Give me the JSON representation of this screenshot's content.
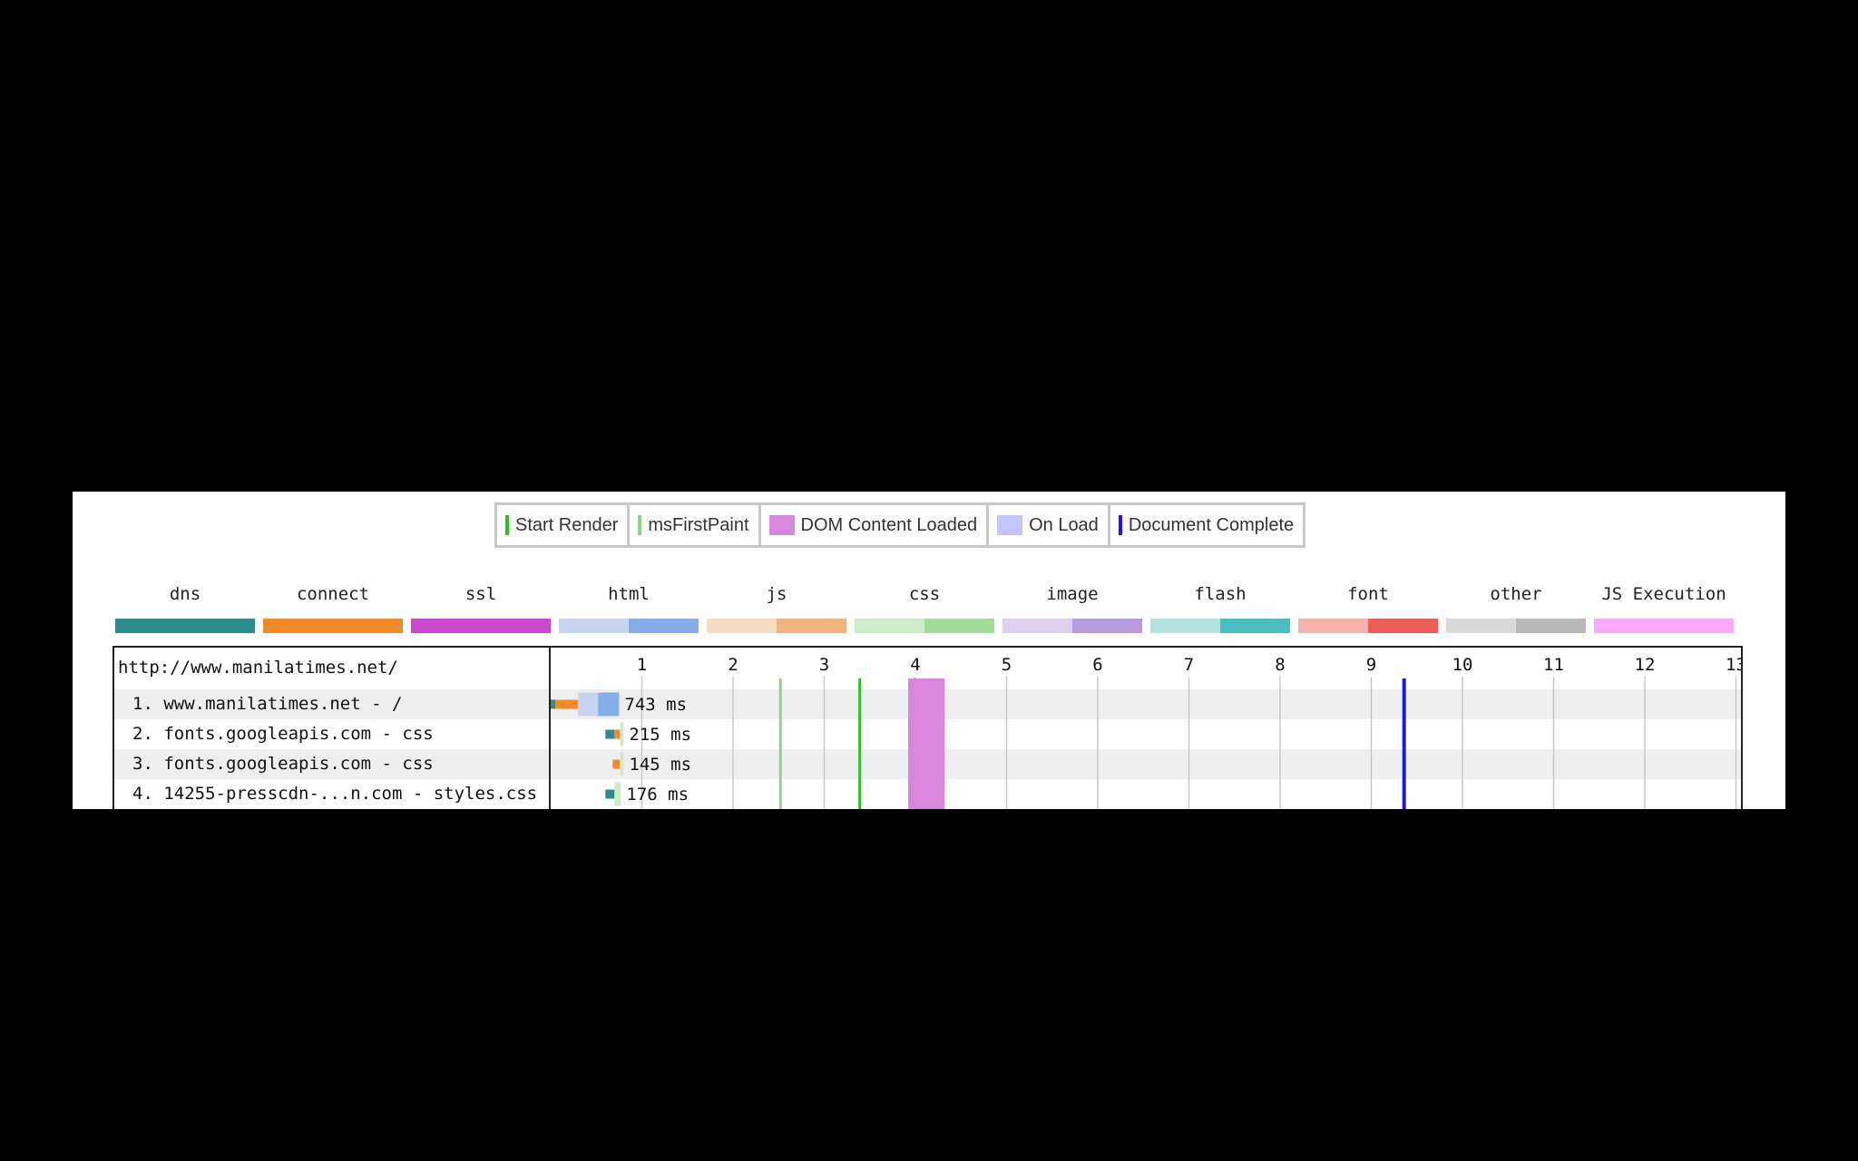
{
  "event_legend": [
    {
      "label": "Start Render",
      "color": "#28c21e",
      "kind": "line"
    },
    {
      "label": "msFirstPaint",
      "color": "#8fd38a",
      "kind": "line"
    },
    {
      "label": "DOM Content Loaded",
      "color": "#d888dc",
      "kind": "box"
    },
    {
      "label": "On Load",
      "color": "#c4c4ff",
      "kind": "box"
    },
    {
      "label": "Document Complete",
      "color": "#1a1ae6",
      "kind": "line"
    }
  ],
  "type_legend": [
    {
      "label": "dns",
      "colors": [
        "#2e8b8b",
        "#2e8b8b"
      ]
    },
    {
      "label": "connect",
      "colors": [
        "#f08a2a",
        "#f08a2a"
      ]
    },
    {
      "label": "ssl",
      "colors": [
        "#c94ad0",
        "#c94ad0"
      ]
    },
    {
      "label": "html",
      "colors": [
        "#c7d4ef",
        "#86aee6"
      ]
    },
    {
      "label": "js",
      "colors": [
        "#f5dcc2",
        "#f1b47f"
      ]
    },
    {
      "label": "css",
      "colors": [
        "#cfecc9",
        "#a3dc96"
      ]
    },
    {
      "label": "image",
      "colors": [
        "#ddd1ee",
        "#b89ae0"
      ]
    },
    {
      "label": "flash",
      "colors": [
        "#b4e3e0",
        "#4bbcbf"
      ]
    },
    {
      "label": "font",
      "colors": [
        "#f4b4ad",
        "#ea5e57"
      ]
    },
    {
      "label": "other",
      "colors": [
        "#dadada",
        "#b8b8b8"
      ]
    },
    {
      "label": "JS Execution",
      "colors": [
        "#fca9fb",
        "#fca9fb"
      ]
    }
  ],
  "waterfall": {
    "page_url": "http://www.manilatimes.net/",
    "requests": [
      {
        "label": "1. www.manilatimes.net - /",
        "duration": "743 ms"
      },
      {
        "label": "2. fonts.googleapis.com - css",
        "duration": "215 ms"
      },
      {
        "label": "3. fonts.googleapis.com - css",
        "duration": "145 ms"
      },
      {
        "label": "4. 14255-presscdn-...n.com - styles.css",
        "duration": "176 ms"
      }
    ]
  },
  "chart_data": {
    "type": "bar",
    "x_unit": "seconds",
    "xlim": [
      0,
      13
    ],
    "ticks": [
      "1",
      "2",
      "3",
      "4",
      "5",
      "6",
      "7",
      "8",
      "9",
      "10",
      "11",
      "12",
      "13"
    ],
    "grid": true,
    "events": {
      "start_render": 3.39,
      "ms_first_paint": 2.52,
      "dom_content_loaded": [
        3.92,
        4.32
      ],
      "document_complete": 9.36
    },
    "requests": [
      {
        "start": 0.0,
        "end": 0.75,
        "segments": [
          {
            "type": "dns",
            "from": 0.0,
            "to": 0.05
          },
          {
            "type": "connect",
            "from": 0.05,
            "to": 0.3
          },
          {
            "type": "html-ttfb",
            "from": 0.3,
            "to": 0.52
          },
          {
            "type": "html-download",
            "from": 0.52,
            "to": 0.75
          }
        ]
      },
      {
        "start": 0.6,
        "end": 0.8,
        "segments": [
          {
            "type": "dns",
            "from": 0.6,
            "to": 0.7
          },
          {
            "type": "connect",
            "from": 0.7,
            "to": 0.76
          },
          {
            "type": "css-ttfb",
            "from": 0.76,
            "to": 0.8
          }
        ]
      },
      {
        "start": 0.68,
        "end": 0.8,
        "segments": [
          {
            "type": "connect",
            "from": 0.68,
            "to": 0.76
          },
          {
            "type": "css-ttfb",
            "from": 0.76,
            "to": 0.8
          }
        ]
      },
      {
        "start": 0.6,
        "end": 0.77,
        "segments": [
          {
            "type": "dns",
            "from": 0.6,
            "to": 0.7
          },
          {
            "type": "css-ttfb",
            "from": 0.7,
            "to": 0.77
          }
        ]
      }
    ]
  }
}
